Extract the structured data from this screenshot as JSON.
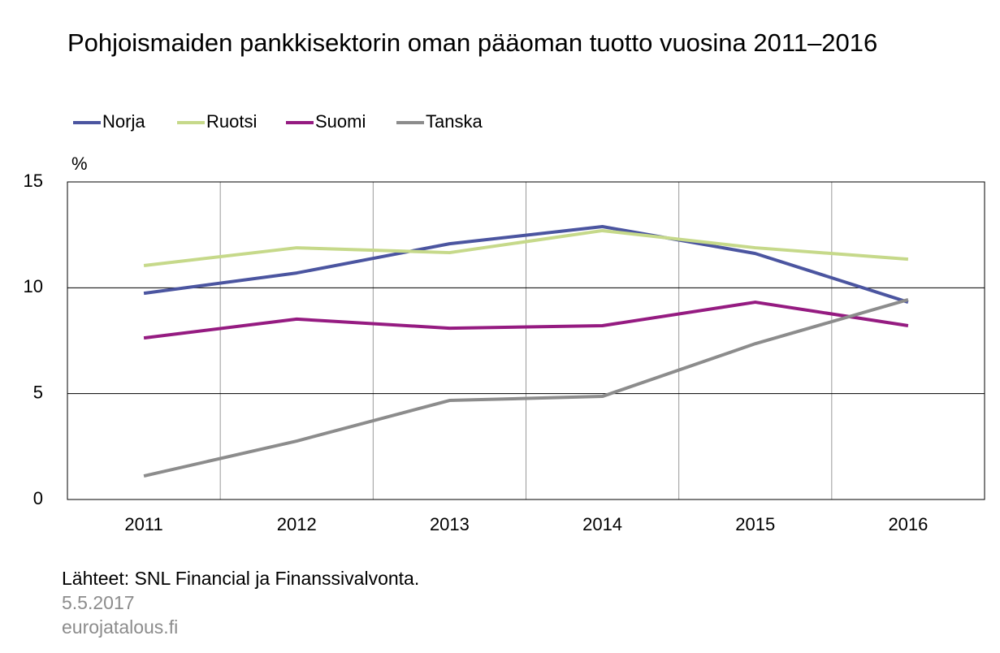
{
  "chart_data": {
    "type": "line",
    "title": "Pohjoismaiden pankkisektorin oman pääoman tuotto vuosina 2011–2016",
    "y_unit": "%",
    "categories": [
      "2011",
      "2012",
      "2013",
      "2014",
      "2015",
      "2016"
    ],
    "series": [
      {
        "name": "Norja",
        "color": "#4b55a0",
        "values": [
          9.74,
          10.7,
          12.08,
          12.89,
          11.62,
          9.32
        ]
      },
      {
        "name": "Ruotsi",
        "color": "#c6d98a",
        "values": [
          11.05,
          11.89,
          11.66,
          12.7,
          11.89,
          11.35
        ]
      },
      {
        "name": "Suomi",
        "color": "#951b81",
        "values": [
          7.63,
          8.52,
          8.09,
          8.21,
          9.32,
          8.21
        ]
      },
      {
        "name": "Tanska",
        "color": "#8c8c8c",
        "values": [
          1.11,
          2.76,
          4.68,
          4.87,
          7.36,
          9.44
        ]
      }
    ],
    "ylim": [
      0,
      15
    ],
    "yticks": [
      0,
      5,
      10,
      15
    ],
    "grid": true,
    "source": "Lähteet: SNL Financial ja Finanssivalvonta.",
    "date": "5.5.2017",
    "site": "eurojatalous.fi"
  }
}
